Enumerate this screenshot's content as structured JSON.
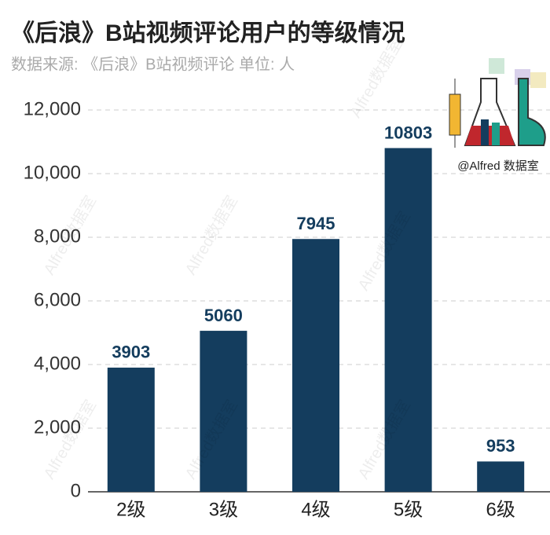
{
  "chart_data": {
    "type": "bar",
    "title": "《后浪》B站视频评论用户的等级情况",
    "subtitle": "数据来源: 《后浪》B站视频评论 单位: 人",
    "logo_text": "@Alfred 数据室",
    "watermark": "Alfred数据室",
    "categories": [
      "2级",
      "3级",
      "4级",
      "5级",
      "6级"
    ],
    "values": [
      3903,
      5060,
      7945,
      10803,
      953
    ],
    "color": "#143d5e",
    "ylim": [
      0,
      12000
    ],
    "yticks": [
      0,
      {
        "value": 2000,
        "label": "2,000"
      },
      {
        "value": 4000,
        "label": "4,000"
      },
      {
        "value": 6000,
        "label": "6,000"
      },
      {
        "value": 8000,
        "label": "8,000"
      },
      {
        "value": 10000,
        "label": "10,000"
      },
      {
        "value": 12000,
        "label": "12,000"
      }
    ],
    "grid": true
  }
}
